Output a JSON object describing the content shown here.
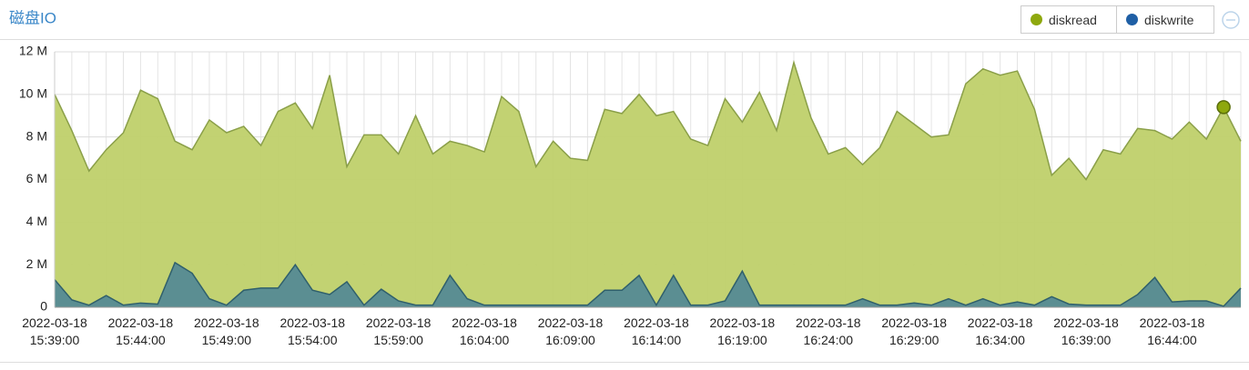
{
  "chart_data": {
    "type": "area",
    "title": "磁盘IO",
    "categories": [
      "2022-03-18 15:39:00",
      null,
      null,
      null,
      null,
      "2022-03-18 15:44:00",
      null,
      null,
      null,
      null,
      "2022-03-18 15:49:00",
      null,
      null,
      null,
      null,
      "2022-03-18 15:54:00",
      null,
      null,
      null,
      null,
      "2022-03-18 15:59:00",
      null,
      null,
      null,
      null,
      "2022-03-18 16:04:00",
      null,
      null,
      null,
      null,
      "2022-03-18 16:09:00",
      null,
      null,
      null,
      null,
      "2022-03-18 16:14:00",
      null,
      null,
      null,
      null,
      "2022-03-18 16:19:00",
      null,
      null,
      null,
      null,
      "2022-03-18 16:24:00",
      null,
      null,
      null,
      null,
      "2022-03-18 16:29:00",
      null,
      null,
      null,
      null,
      "2022-03-18 16:34:00",
      null,
      null,
      null,
      null,
      "2022-03-18 16:39:00",
      null,
      null,
      null,
      null,
      "2022-03-18 16:44:00",
      null,
      null,
      null,
      null
    ],
    "series": [
      {
        "name": "diskread",
        "color": "#8ea80e",
        "fill": "#bfd06a",
        "line": "#8a9f48",
        "values": [
          10.0,
          8.3,
          6.4,
          7.4,
          8.2,
          10.2,
          9.8,
          7.8,
          7.4,
          8.8,
          8.2,
          8.5,
          7.6,
          9.2,
          9.6,
          8.4,
          10.9,
          6.6,
          8.1,
          8.1,
          7.2,
          9.0,
          7.2,
          7.8,
          7.6,
          7.3,
          9.9,
          9.2,
          6.6,
          7.8,
          7.0,
          6.9,
          9.3,
          9.1,
          10.0,
          9.0,
          9.2,
          7.9,
          7.6,
          9.8,
          8.7,
          10.1,
          8.3,
          11.5,
          8.9,
          7.2,
          7.5,
          6.7,
          7.5,
          9.2,
          8.6,
          8.0,
          8.1,
          10.5,
          11.2,
          10.9,
          11.1,
          9.3,
          6.2,
          7.0,
          6.0,
          7.4,
          7.2,
          8.4,
          8.3,
          7.9,
          8.7,
          7.9,
          9.4,
          7.8
        ]
      },
      {
        "name": "diskwrite",
        "color": "#1f5fa5",
        "fill": "#558a94",
        "line": "#2f5f6c",
        "values": [
          1.3,
          0.35,
          0.1,
          0.55,
          0.1,
          0.2,
          0.15,
          2.1,
          1.6,
          0.4,
          0.1,
          0.8,
          0.9,
          0.9,
          2.0,
          0.8,
          0.6,
          1.2,
          0.1,
          0.85,
          0.3,
          0.1,
          0.1,
          1.5,
          0.4,
          0.1,
          0.1,
          0.1,
          0.1,
          0.1,
          0.1,
          0.1,
          0.8,
          0.8,
          1.5,
          0.1,
          1.5,
          0.1,
          0.1,
          0.3,
          1.7,
          0.1,
          0.1,
          0.1,
          0.1,
          0.1,
          0.1,
          0.4,
          0.1,
          0.1,
          0.2,
          0.1,
          0.4,
          0.1,
          0.4,
          0.1,
          0.25,
          0.1,
          0.5,
          0.15,
          0.1,
          0.1,
          0.1,
          0.6,
          1.4,
          0.25,
          0.3,
          0.3,
          0.05,
          0.9
        ]
      }
    ],
    "highlight": {
      "series": 0,
      "index": 68
    },
    "ylim": [
      0,
      12
    ],
    "yticks": [
      0,
      {
        "value": 2,
        "label": "2 M"
      },
      {
        "value": 4,
        "label": "4 M"
      },
      {
        "value": 6,
        "label": "6 M"
      },
      {
        "value": 8,
        "label": "8 M"
      },
      {
        "value": 10,
        "label": "10 M"
      },
      {
        "value": 12,
        "label": "12 M"
      }
    ],
    "grid": true
  }
}
